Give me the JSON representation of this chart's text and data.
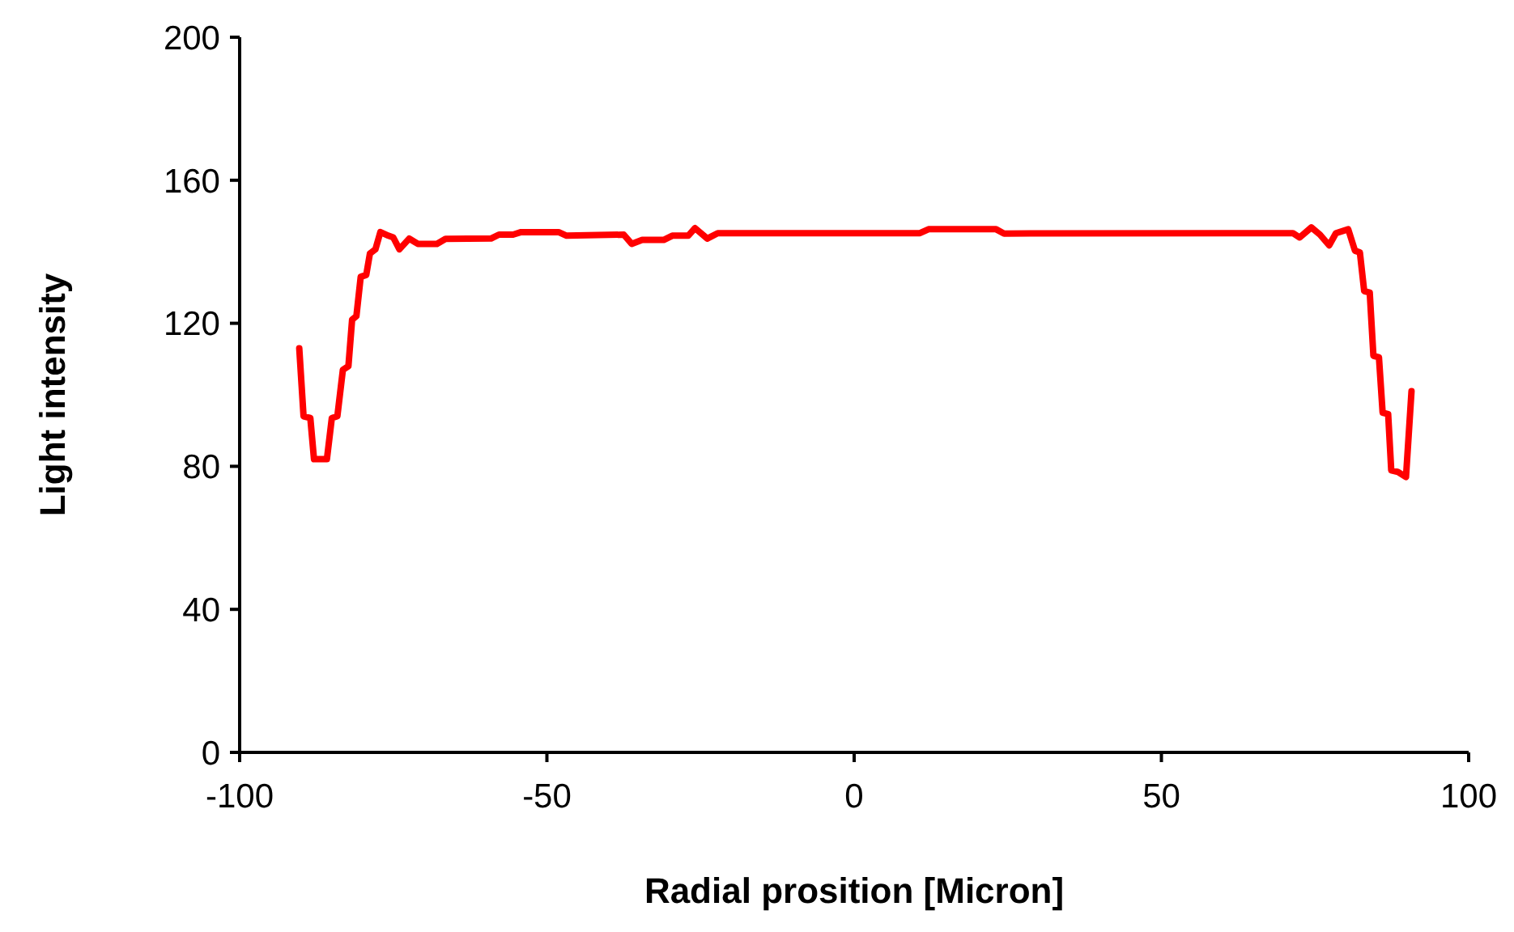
{
  "chart_data": {
    "type": "line",
    "xlabel": "Radial prosition [Micron]",
    "ylabel": "Light intensity",
    "xlim": [
      -100,
      100
    ],
    "xticks": [
      -100,
      -50,
      0,
      50,
      100
    ],
    "ylim": [
      0,
      200
    ],
    "yticks": [
      0,
      40,
      80,
      120,
      160,
      200
    ],
    "grid": false,
    "marker": "none",
    "line_style": "solid",
    "series": [
      {
        "color": "#ff0000",
        "x": [
          -90.3,
          -89.6,
          -88.5,
          -87.9,
          -85.8,
          -85,
          -84.1,
          -83.2,
          -82.3,
          -81.7,
          -81,
          -80.3,
          -79.4,
          -78.8,
          -77.9,
          -77.1,
          -75.8,
          -75,
          -74,
          -72.4,
          -71,
          -67.9,
          -66.5,
          -59.1,
          -57.8,
          -55.5,
          -54.2,
          -48.1,
          -46.8,
          -37.5,
          -36.2,
          -34.5,
          -31,
          -29.6,
          -27,
          -25.9,
          -23.9,
          -22.2,
          10.7,
          12.1,
          23.1,
          24.4,
          61.3,
          71.4,
          72.5,
          74.4,
          75.8,
          77.3,
          78.4,
          80.4,
          81.5,
          82.3,
          83,
          83.9,
          84.5,
          85.4,
          86,
          86.9,
          87.4,
          88.5,
          89.8,
          90.7
        ],
        "values": [
          113,
          94,
          93.5,
          82,
          82,
          93.5,
          94,
          107,
          108,
          121,
          122,
          133,
          133.5,
          139.5,
          140.7,
          145.5,
          144.5,
          144,
          140.7,
          143.7,
          142.2,
          142.2,
          143.6,
          143.7,
          144.8,
          144.8,
          145.5,
          145.5,
          144.5,
          144.8,
          142.2,
          143.3,
          143.3,
          144.5,
          144.5,
          146.6,
          143.7,
          145.2,
          145.2,
          146.3,
          146.3,
          145.1,
          145.2,
          145.2,
          144,
          146.8,
          144.8,
          141.8,
          145.2,
          146.3,
          140.3,
          139.8,
          129,
          128.6,
          110.9,
          110.5,
          95,
          94.6,
          78.9,
          78.4,
          77,
          101
        ]
      }
    ]
  }
}
